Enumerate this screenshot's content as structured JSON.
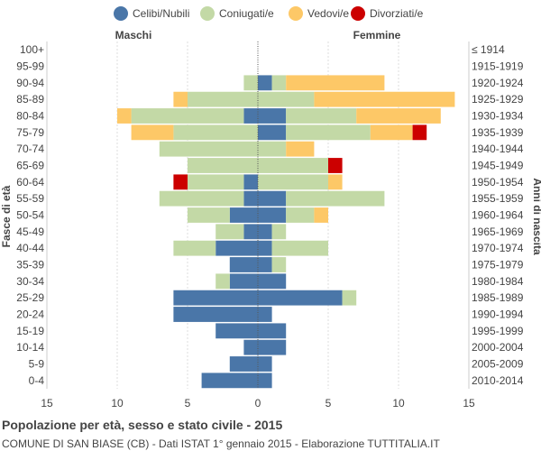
{
  "chart_data": {
    "type": "bar",
    "orientation": "horizontal-population-pyramid",
    "title": "Popolazione per età, sesso e stato civile - 2015",
    "subtitle": "COMUNE DI SAN BIASE (CB) - Dati ISTAT 1° gennaio 2015 - Elaborazione TUTTITALIA.IT",
    "left_group_label": "Maschi",
    "right_group_label": "Femmine",
    "ylabel_left": "Fasce di età",
    "ylabel_right": "Anni di nascita",
    "x_ticks": [
      15,
      10,
      5,
      0,
      5,
      10,
      15
    ],
    "xlim": [
      -15,
      15
    ],
    "legend_position": "top",
    "legend": [
      {
        "name": "Celibi/Nubili",
        "color": "#4a76a8"
      },
      {
        "name": "Coniugati/e",
        "color": "#c3d9a6"
      },
      {
        "name": "Vedovi/e",
        "color": "#fdc867"
      },
      {
        "name": "Divorziati/e",
        "color": "#cc0000"
      }
    ],
    "age_groups": [
      "100+",
      "95-99",
      "90-94",
      "85-89",
      "80-84",
      "75-79",
      "70-74",
      "65-69",
      "60-64",
      "55-59",
      "50-54",
      "45-49",
      "40-44",
      "35-39",
      "30-34",
      "25-29",
      "20-24",
      "15-19",
      "10-14",
      "5-9",
      "0-4"
    ],
    "birth_years": [
      "≤ 1914",
      "1915-1919",
      "1920-1924",
      "1925-1929",
      "1930-1934",
      "1935-1939",
      "1940-1944",
      "1945-1949",
      "1950-1954",
      "1955-1959",
      "1960-1964",
      "1965-1969",
      "1970-1974",
      "1975-1979",
      "1980-1984",
      "1985-1989",
      "1990-1994",
      "1995-1999",
      "2000-2004",
      "2005-2009",
      "2010-2014"
    ],
    "males": {
      "celibi": [
        0,
        0,
        0,
        0,
        1,
        0,
        0,
        0,
        1,
        1,
        2,
        1,
        3,
        2,
        2,
        6,
        6,
        3,
        1,
        2,
        4
      ],
      "coniugati": [
        0,
        0,
        1,
        5,
        8,
        6,
        7,
        5,
        4,
        6,
        3,
        2,
        3,
        0,
        1,
        0,
        0,
        0,
        0,
        0,
        0
      ],
      "vedovi": [
        0,
        0,
        0,
        1,
        1,
        3,
        0,
        0,
        0,
        0,
        0,
        0,
        0,
        0,
        0,
        0,
        0,
        0,
        0,
        0,
        0
      ],
      "divorziati": [
        0,
        0,
        0,
        0,
        0,
        0,
        0,
        0,
        1,
        0,
        0,
        0,
        0,
        0,
        0,
        0,
        0,
        0,
        0,
        0,
        0
      ]
    },
    "females": {
      "nubili": [
        0,
        0,
        1,
        0,
        2,
        2,
        0,
        0,
        0,
        2,
        2,
        1,
        1,
        1,
        2,
        6,
        1,
        2,
        2,
        1,
        1
      ],
      "coniugate": [
        0,
        0,
        1,
        4,
        5,
        6,
        2,
        5,
        5,
        7,
        2,
        1,
        4,
        1,
        0,
        1,
        0,
        0,
        0,
        0,
        0
      ],
      "vedove": [
        0,
        0,
        7,
        10,
        6,
        3,
        2,
        0,
        1,
        0,
        1,
        0,
        0,
        0,
        0,
        0,
        0,
        0,
        0,
        0,
        0
      ],
      "divorziate": [
        0,
        0,
        0,
        0,
        0,
        1,
        0,
        1,
        0,
        0,
        0,
        0,
        0,
        0,
        0,
        0,
        0,
        0,
        0,
        0,
        0
      ]
    }
  }
}
